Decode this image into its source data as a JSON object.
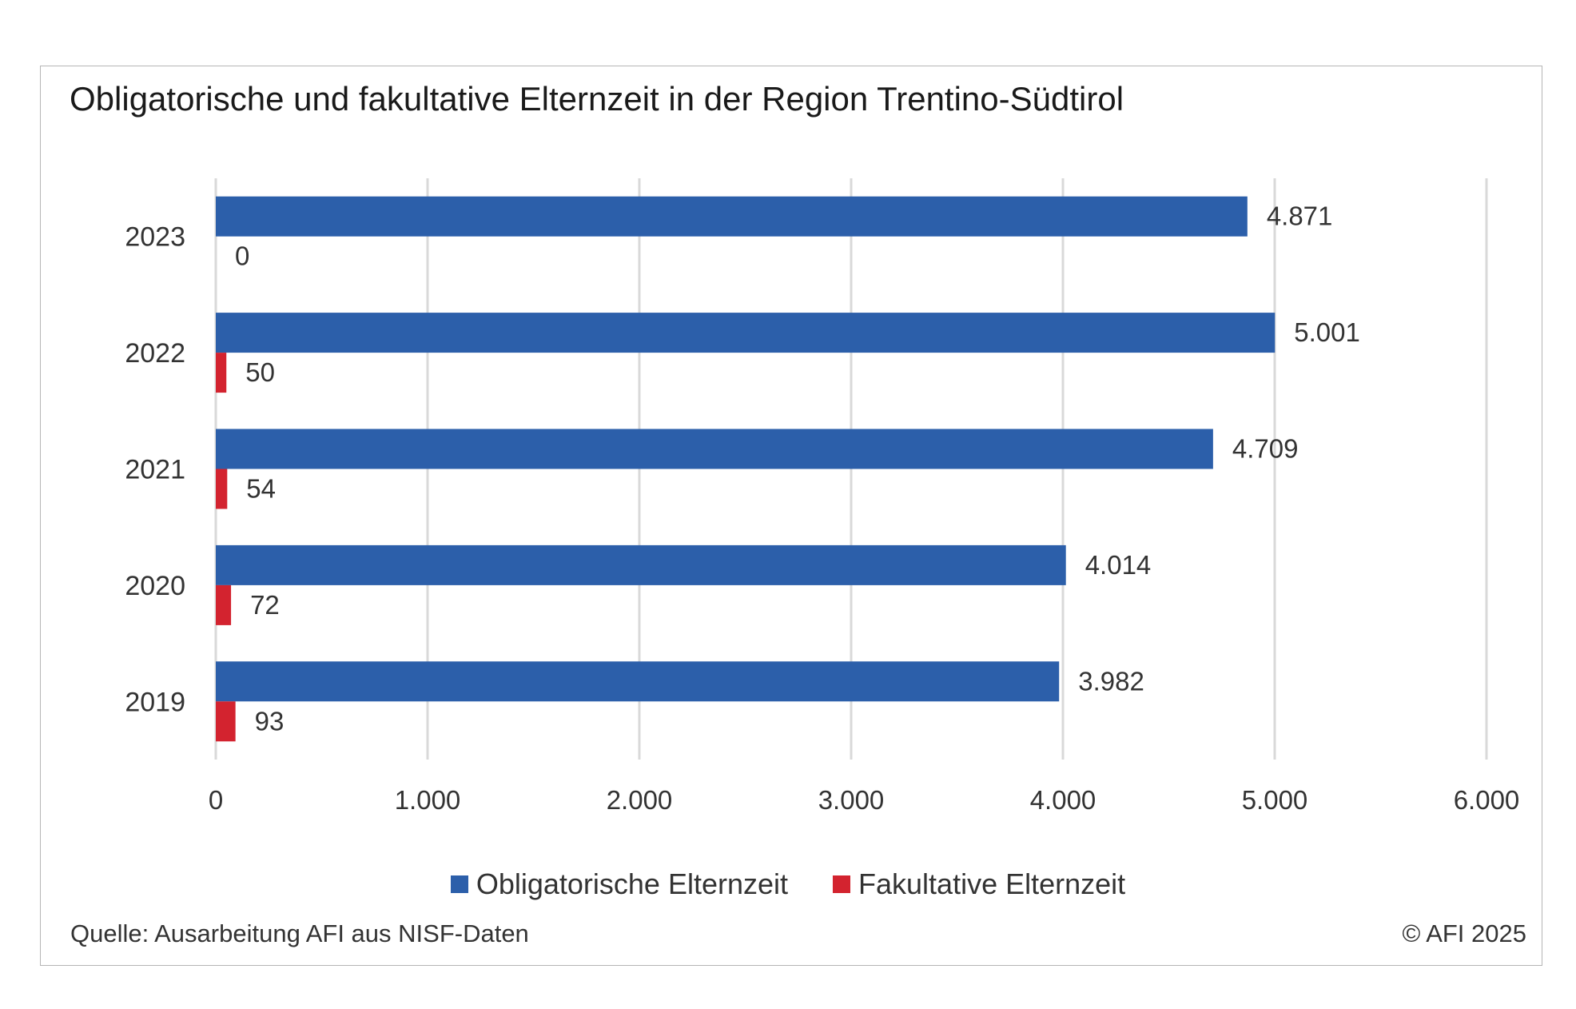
{
  "colors": {
    "obligatory": "#2c5faa",
    "facultative": "#d3232f",
    "grid": "#d9d9d9"
  },
  "source": "Quelle: Ausarbeitung AFI aus NISF-Daten",
  "copyright": "© AFI 2025",
  "chart_data": {
    "type": "bar",
    "orientation": "horizontal",
    "title": "Obligatorische und fakultative Elternzeit in der Region Trentino-Südtirol",
    "categories": [
      "2023",
      "2022",
      "2021",
      "2020",
      "2019"
    ],
    "series": [
      {
        "name": "Obligatorische Elternzeit",
        "values": [
          4871,
          5001,
          4709,
          4014,
          3982
        ],
        "labels": [
          "4.871",
          "5.001",
          "4.709",
          "4.014",
          "3.982"
        ]
      },
      {
        "name": "Fakultative Elternzeit",
        "values": [
          0,
          50,
          54,
          72,
          93
        ],
        "labels": [
          "0",
          "50",
          "54",
          "72",
          "93"
        ]
      }
    ],
    "xlim": [
      0,
      6000
    ],
    "x_ticks": [
      0,
      1000,
      2000,
      3000,
      4000,
      5000,
      6000
    ],
    "x_tick_labels": [
      "0",
      "1.000",
      "2.000",
      "3.000",
      "4.000",
      "5.000",
      "6.000"
    ],
    "grid": true,
    "legend": "bottom"
  }
}
